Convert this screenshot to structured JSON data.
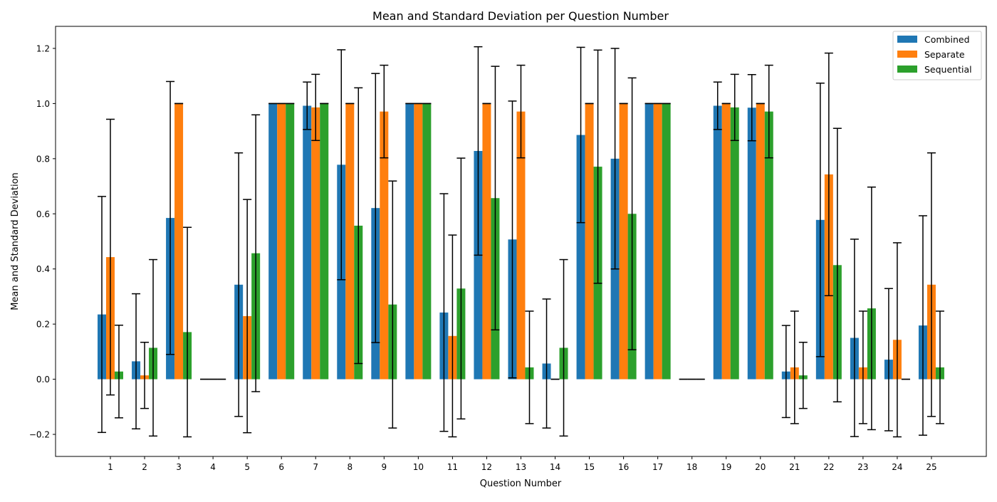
{
  "chart_data": {
    "type": "bar",
    "title": "Mean and Standard Deviation per Question Number",
    "xlabel": "Question Number",
    "ylabel": "Mean and Standard Deviation",
    "ylim": [
      -0.28,
      1.28
    ],
    "yticks": [
      -0.2,
      0.0,
      0.2,
      0.4,
      0.6,
      0.8,
      1.0,
      1.2
    ],
    "ytick_labels": [
      "−0.2",
      "0.0",
      "0.2",
      "0.4",
      "0.6",
      "0.8",
      "1.0",
      "1.2"
    ],
    "grid": false,
    "legend_position": "top-right",
    "categories": [
      "1",
      "2",
      "3",
      "4",
      "5",
      "6",
      "7",
      "8",
      "9",
      "10",
      "11",
      "12",
      "13",
      "14",
      "15",
      "16",
      "17",
      "18",
      "19",
      "20",
      "21",
      "22",
      "23",
      "24",
      "25"
    ],
    "series": [
      {
        "name": "Combined",
        "color": "#1f77b4",
        "values": [
          0.235,
          0.065,
          0.585,
          0.0,
          0.343,
          1.0,
          0.992,
          0.778,
          0.621,
          1.0,
          0.242,
          0.828,
          0.507,
          0.057,
          0.886,
          0.8,
          1.0,
          0.0,
          0.992,
          0.985,
          0.028,
          0.578,
          0.15,
          0.071,
          0.195
        ],
        "errors": [
          0.428,
          0.245,
          0.495,
          0.0,
          0.478,
          0.0,
          0.086,
          0.417,
          0.488,
          0.0,
          0.431,
          0.378,
          0.502,
          0.234,
          0.318,
          0.4,
          0.0,
          0.0,
          0.086,
          0.12,
          0.167,
          0.496,
          0.358,
          0.258,
          0.398
        ]
      },
      {
        "name": "Separate",
        "color": "#ff7f0e",
        "values": [
          0.443,
          0.014,
          1.0,
          0.0,
          0.229,
          1.0,
          0.986,
          1.0,
          0.971,
          1.0,
          0.157,
          1.0,
          0.971,
          0.0,
          1.0,
          1.0,
          1.0,
          0.0,
          1.0,
          1.0,
          0.043,
          0.743,
          0.043,
          0.143,
          0.343
        ],
        "errors": [
          0.5,
          0.12,
          0.0,
          0.0,
          0.423,
          0.0,
          0.12,
          0.0,
          0.168,
          0.0,
          0.366,
          0.0,
          0.168,
          0.0,
          0.0,
          0.0,
          0.0,
          0.0,
          0.0,
          0.0,
          0.204,
          0.44,
          0.204,
          0.352,
          0.478
        ]
      },
      {
        "name": "Sequential",
        "color": "#2ca02c",
        "values": [
          0.028,
          0.114,
          0.171,
          0.0,
          0.457,
          1.0,
          1.0,
          0.557,
          0.271,
          1.0,
          0.329,
          0.657,
          0.043,
          0.114,
          0.771,
          0.6,
          1.0,
          0.0,
          0.986,
          0.971,
          0.014,
          0.414,
          0.257,
          0.0,
          0.043
        ],
        "errors": [
          0.168,
          0.32,
          0.38,
          0.0,
          0.502,
          0.0,
          0.0,
          0.5,
          0.448,
          0.0,
          0.473,
          0.478,
          0.204,
          0.32,
          0.423,
          0.493,
          0.0,
          0.0,
          0.12,
          0.168,
          0.12,
          0.496,
          0.44,
          0.0,
          0.204
        ]
      }
    ]
  }
}
